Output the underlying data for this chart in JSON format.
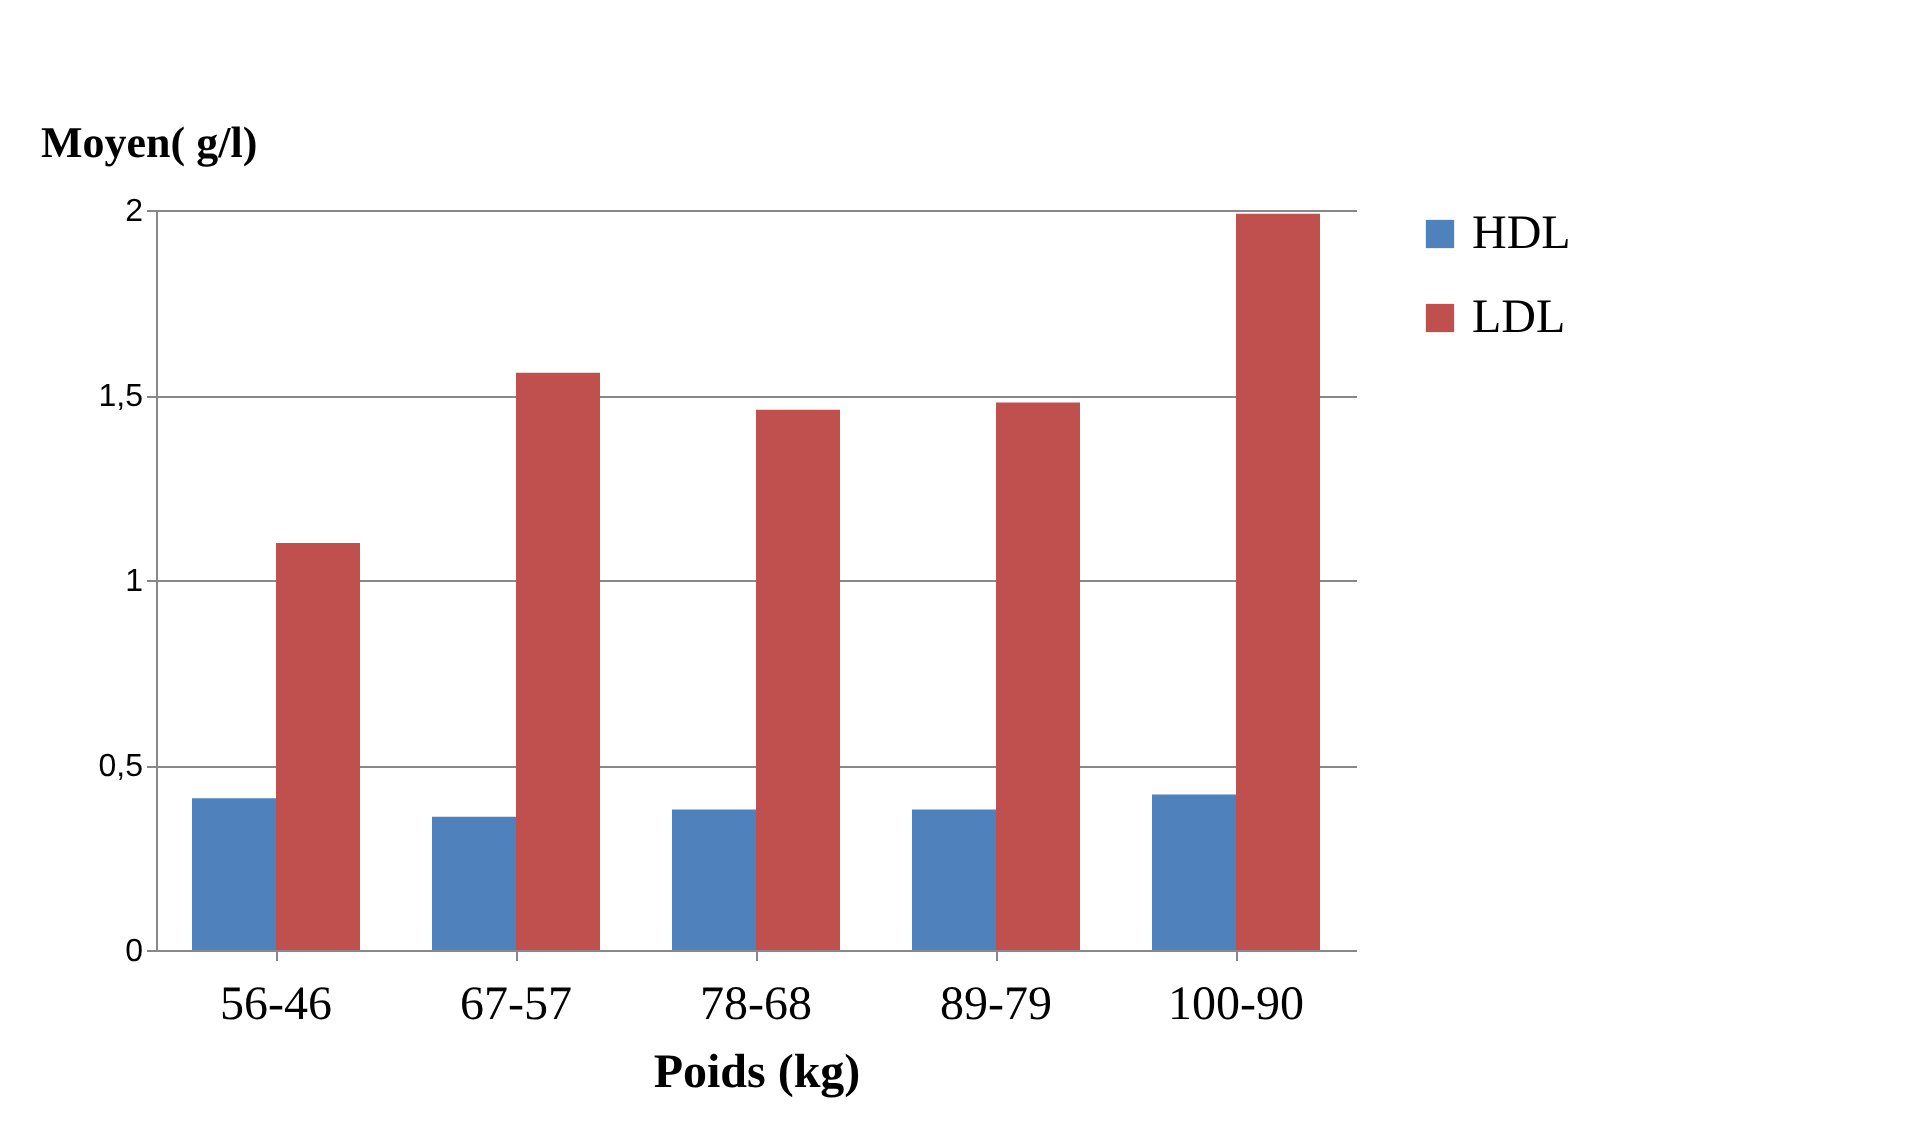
{
  "chart_data": {
    "type": "bar",
    "xlabel": "Poids (kg)",
    "ylabel": "Moyen( g/l)",
    "categories": [
      "56-46",
      "67-57",
      "78-68",
      "89-79",
      "100-90"
    ],
    "series": [
      {
        "name": "HDL",
        "color": "#4f81bd",
        "values": [
          0.41,
          0.36,
          0.38,
          0.38,
          0.42
        ]
      },
      {
        "name": "LDL",
        "color": "#c0504d",
        "values": [
          1.1,
          1.56,
          1.46,
          1.48,
          1.99
        ]
      }
    ],
    "ylim": [
      0,
      2
    ],
    "yticks": [
      0,
      {
        "value": 0.5,
        "label": "0,5"
      },
      1,
      {
        "value": 1.5,
        "label": "1,5"
      },
      2
    ],
    "grid": "y",
    "legend": "right"
  }
}
